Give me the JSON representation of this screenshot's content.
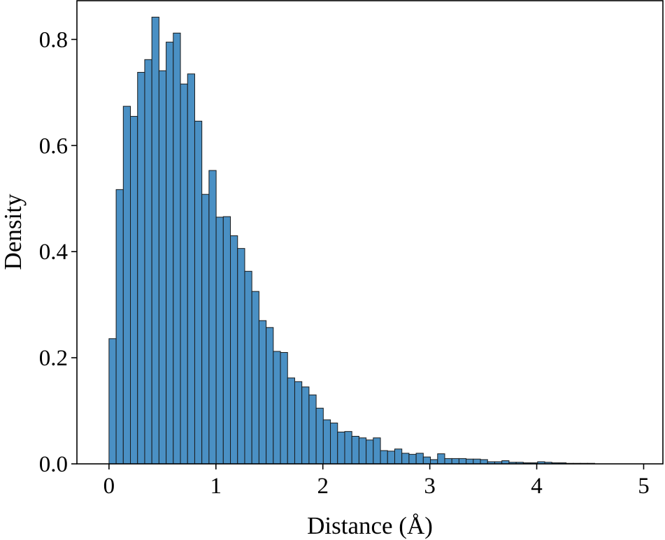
{
  "chart_data": {
    "type": "bar",
    "title": "",
    "xlabel": "Distance (Å)",
    "ylabel": "Density",
    "xlim": [
      -0.3,
      5.18
    ],
    "ylim": [
      0,
      0.873
    ],
    "xticks": [
      0,
      1,
      2,
      3,
      4,
      5
    ],
    "xtick_labels": [
      "0",
      "1",
      "2",
      "3",
      "4",
      "5"
    ],
    "yticks": [
      0.0,
      0.2,
      0.4,
      0.6,
      0.8
    ],
    "ytick_labels": [
      "0.0",
      "0.2",
      "0.4",
      "0.6",
      "0.8"
    ],
    "grid": false,
    "bin_width": 0.0668,
    "bin_start": 0,
    "bar_color": "#4a90c4",
    "edge_color": "#1a1a1a",
    "values": [
      0.236,
      0.517,
      0.674,
      0.655,
      0.738,
      0.762,
      0.842,
      0.741,
      0.795,
      0.812,
      0.716,
      0.735,
      0.646,
      0.508,
      0.553,
      0.465,
      0.466,
      0.43,
      0.406,
      0.363,
      0.325,
      0.27,
      0.257,
      0.212,
      0.21,
      0.162,
      0.155,
      0.145,
      0.13,
      0.105,
      0.083,
      0.077,
      0.06,
      0.061,
      0.052,
      0.049,
      0.045,
      0.049,
      0.025,
      0.024,
      0.028,
      0.02,
      0.018,
      0.02,
      0.013,
      0.008,
      0.019,
      0.01,
      0.01,
      0.01,
      0.009,
      0.009,
      0.008,
      0.004,
      0.004,
      0.006,
      0.003,
      0.003,
      0.002,
      0.002,
      0.004,
      0.003,
      0.002,
      0.002,
      0.001,
      0.001,
      0.001,
      0.001,
      0.0,
      0.0,
      0.0,
      0.0,
      0.0,
      0.0,
      0.0,
      0.0
    ]
  }
}
